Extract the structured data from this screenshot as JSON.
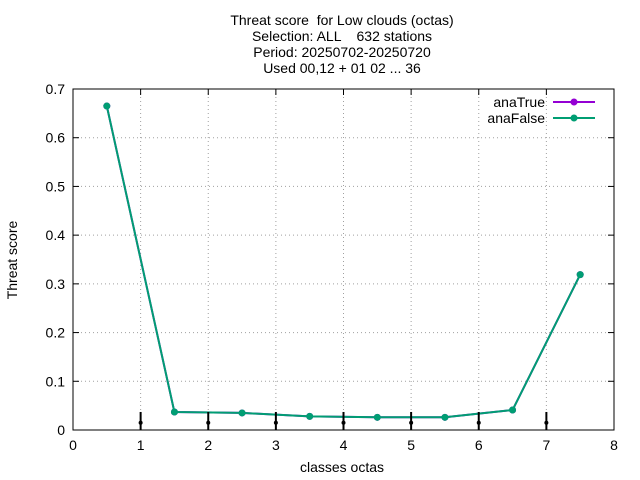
{
  "chart_data": {
    "type": "line",
    "title_lines": [
      "Threat score  for Low clouds (octas)",
      "Selection: ALL    632 stations",
      "Period: 20250702-20250720",
      "Used 00,12 + 01 02 ... 36"
    ],
    "xlabel": "classes octas",
    "ylabel": "Threat score",
    "xlim": [
      0,
      8
    ],
    "ylim": [
      0,
      0.7
    ],
    "xticks": [
      0,
      1,
      2,
      3,
      4,
      5,
      6,
      7,
      8
    ],
    "yticks": [
      0,
      0.1,
      0.2,
      0.3,
      0.4,
      0.5,
      0.6,
      0.7
    ],
    "xtick_labels": [
      "0",
      "1",
      "2",
      "3",
      "4",
      "5",
      "6",
      "7",
      "8"
    ],
    "ytick_labels": [
      "0",
      "0.1",
      "0.2",
      "0.3",
      "0.4",
      "0.5",
      "0.6",
      "0.7"
    ],
    "grid": true,
    "legend_position": "top-right",
    "series": [
      {
        "name": "anaTrue",
        "color": "#9400d3",
        "x": [
          0.5,
          1.5,
          2.5,
          3.5,
          4.5,
          5.5,
          6.5,
          7.5
        ],
        "y": [
          0.665,
          0.037,
          0.035,
          0.028,
          0.026,
          0.026,
          0.041,
          0.319
        ]
      },
      {
        "name": "anaFalse",
        "color": "#009e73",
        "x": [
          0.5,
          1.5,
          2.5,
          3.5,
          4.5,
          5.5,
          6.5,
          7.5
        ],
        "y": [
          0.665,
          0.037,
          0.035,
          0.028,
          0.026,
          0.026,
          0.041,
          0.319
        ]
      }
    ],
    "error_bars": {
      "color": "#000000",
      "x": [
        1,
        2,
        3,
        4,
        5,
        6,
        7
      ],
      "center": [
        0.015,
        0.015,
        0.015,
        0.015,
        0.015,
        0.015,
        0.015
      ],
      "low": [
        0.0,
        0.0,
        0.0,
        0.0,
        0.0,
        0.0,
        0.0
      ],
      "high": [
        0.037,
        0.037,
        0.037,
        0.037,
        0.037,
        0.037,
        0.037
      ]
    }
  }
}
